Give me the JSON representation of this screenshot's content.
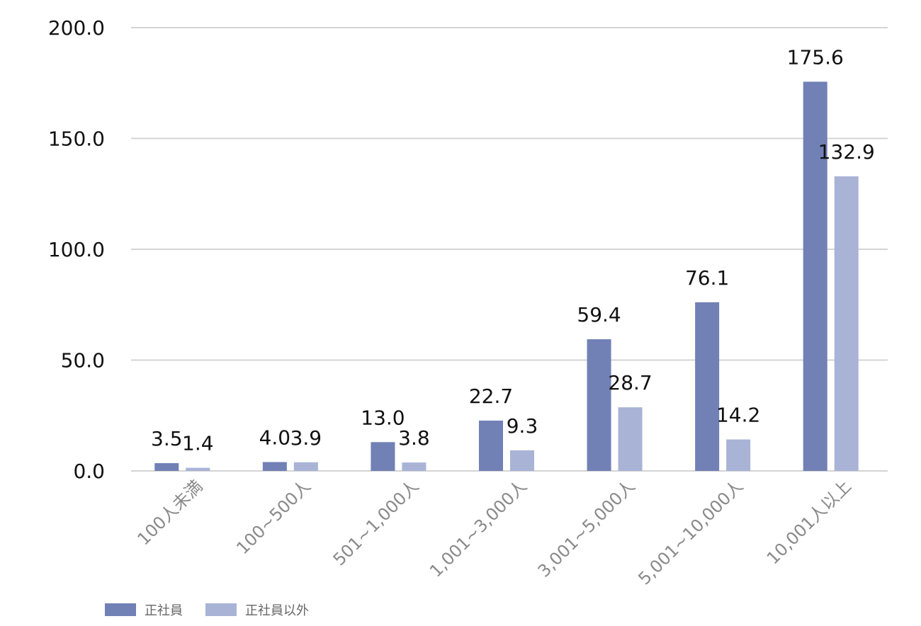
{
  "chart_data": {
    "type": "bar",
    "categories": [
      "100人未満",
      "100~500人",
      "501~1,000人",
      "1,001~3,000人",
      "3,001~5,000人",
      "5,001~10,000人",
      "10,001人以上"
    ],
    "series": [
      {
        "name": "正社員",
        "values": [
          3.5,
          4.0,
          13.0,
          22.7,
          59.4,
          76.1,
          175.6
        ],
        "value_labels": [
          "3.5",
          "4.0",
          "13.0",
          "22.7",
          "59.4",
          "76.1",
          "175.6"
        ]
      },
      {
        "name": "正社員以外",
        "values": [
          1.4,
          3.9,
          3.8,
          9.3,
          28.7,
          14.2,
          132.9
        ],
        "value_labels": [
          "1.4",
          "3.9",
          "3.8",
          "9.3",
          "28.7",
          "14.2",
          "132.9"
        ]
      }
    ],
    "yticks": [
      "0.0",
      "50.0",
      "100.0",
      "150.0",
      "200.0"
    ],
    "ylim": [
      0,
      200
    ],
    "grid": true,
    "legend_position": "bottom-left",
    "colors": {
      "series1": "#7180b5",
      "series2": "#a8b3d6",
      "grid": "#d4d4d4"
    }
  }
}
